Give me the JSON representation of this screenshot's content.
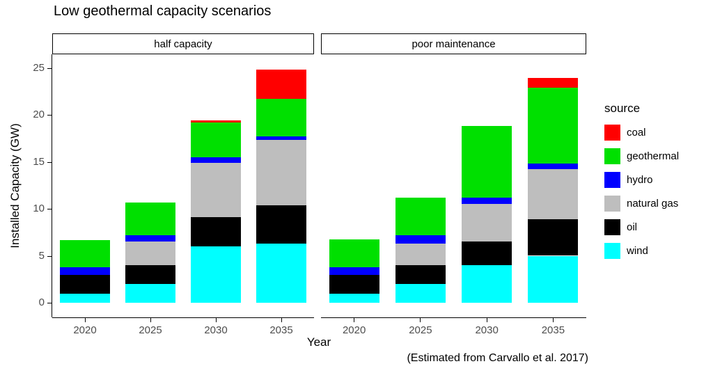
{
  "title": "Low geothermal capacity scenarios",
  "ylabel": "Installed Capacity (GW)",
  "xlabel": "Year",
  "caption": "(Estimated from Carvallo et al. 2017)",
  "legend": {
    "title": "source",
    "entries": [
      {
        "label": "coal",
        "color": "#FF0000"
      },
      {
        "label": "geothermal",
        "color": "#00E000"
      },
      {
        "label": "hydro",
        "color": "#0000FF"
      },
      {
        "label": "natural gas",
        "color": "#BEBEBE"
      },
      {
        "label": "oil",
        "color": "#000000"
      },
      {
        "label": "wind",
        "color": "#00FFFF"
      }
    ]
  },
  "chart_data": {
    "type": "bar",
    "stacked": true,
    "title": "Low geothermal capacity scenarios",
    "xlabel": "Year",
    "ylabel": "Installed Capacity (GW)",
    "categories": [
      "2020",
      "2025",
      "2030",
      "2035"
    ],
    "yticks": [
      0,
      5,
      10,
      15,
      20,
      25
    ],
    "ylim": [
      0,
      26
    ],
    "grid": false,
    "legend_position": "right",
    "stack_order_bottom_to_top": [
      "wind",
      "oil",
      "natural gas",
      "hydro",
      "geothermal",
      "coal"
    ],
    "colors": {
      "coal": "#FF0000",
      "geothermal": "#00E000",
      "hydro": "#0000FF",
      "natural gas": "#BEBEBE",
      "oil": "#000000",
      "wind": "#00FFFF"
    },
    "facets": [
      {
        "label": "half capacity",
        "series": [
          {
            "name": "coal",
            "values": [
              0,
              0,
              0.2,
              3.1
            ]
          },
          {
            "name": "geothermal",
            "values": [
              2.9,
              3.5,
              3.7,
              4.0
            ]
          },
          {
            "name": "hydro",
            "values": [
              0.75,
              0.7,
              0.6,
              0.4
            ]
          },
          {
            "name": "natural gas",
            "values": [
              0,
              2.5,
              5.8,
              6.9
            ]
          },
          {
            "name": "oil",
            "values": [
              2.0,
              2.0,
              3.1,
              4.1
            ]
          },
          {
            "name": "wind",
            "values": [
              1.0,
              2.0,
              6.0,
              6.3
            ]
          }
        ]
      },
      {
        "label": "poor maintenance",
        "series": [
          {
            "name": "coal",
            "values": [
              0,
              0,
              0,
              1.0
            ]
          },
          {
            "name": "geothermal",
            "values": [
              3.0,
              4.0,
              7.6,
              8.1
            ]
          },
          {
            "name": "hydro",
            "values": [
              0.75,
              0.9,
              0.7,
              0.6
            ]
          },
          {
            "name": "natural gas",
            "values": [
              0,
              2.3,
              4.0,
              5.3
            ]
          },
          {
            "name": "oil",
            "values": [
              2.0,
              2.0,
              2.5,
              3.9
            ]
          },
          {
            "name": "wind",
            "values": [
              1.0,
              2.0,
              4.0,
              5.0
            ]
          }
        ]
      }
    ]
  }
}
